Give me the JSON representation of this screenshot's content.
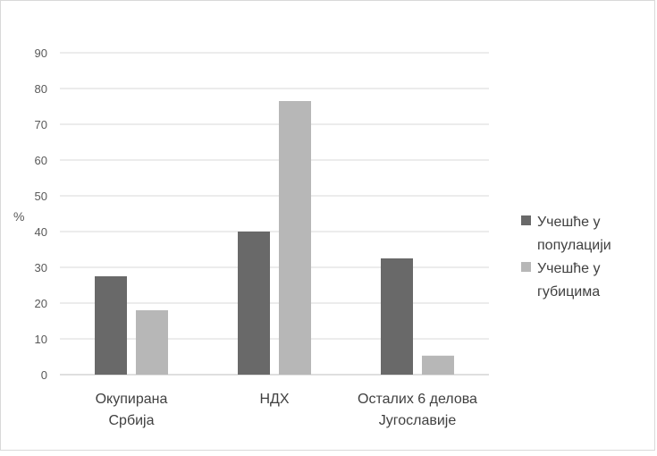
{
  "chart_data": {
    "type": "bar",
    "title": "",
    "ylabel": "%",
    "xlabel": "",
    "ylim": [
      0,
      90
    ],
    "yticks": [
      "0",
      "10",
      "20",
      "30",
      "40",
      "50",
      "60",
      "70",
      "80",
      "90"
    ],
    "grid": true,
    "legend_position": "right",
    "categories": [
      [
        "Окупирана",
        "Србија"
      ],
      [
        "НДХ"
      ],
      [
        "Осталих 6 делова",
        "Југославије"
      ]
    ],
    "series": [
      {
        "name_lines": [
          "Учешће у",
          "популацији"
        ],
        "color": "#696969",
        "values": [
          27.5,
          40,
          32.5
        ]
      },
      {
        "name_lines": [
          "Учешће у",
          "губицима"
        ],
        "color": "#b7b7b7",
        "values": [
          18,
          76.5,
          5.3
        ]
      }
    ]
  }
}
